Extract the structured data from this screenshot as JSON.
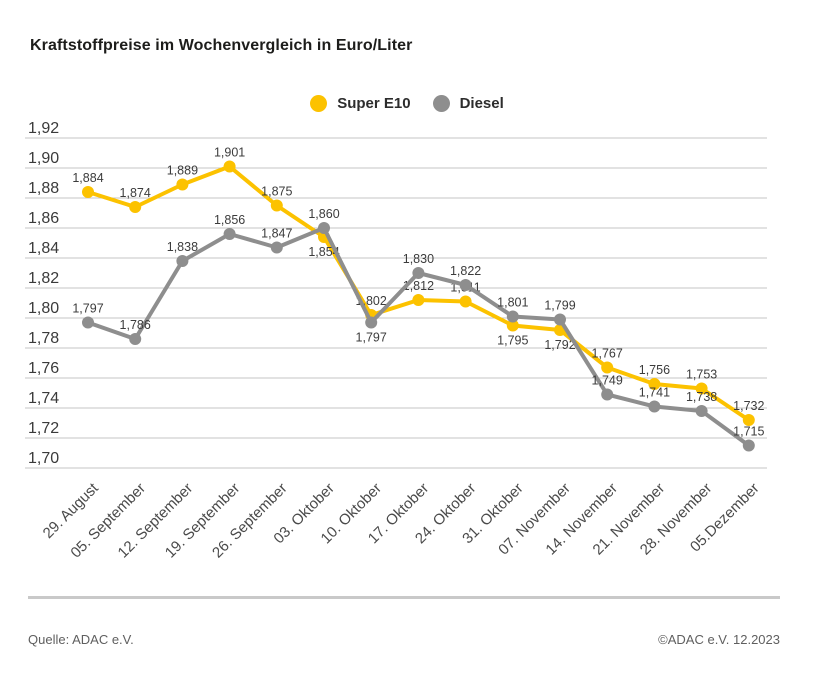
{
  "title": "Kraftstoffpreise im Wochenvergleich in Euro/Liter",
  "legend": {
    "items": [
      {
        "label": "Super E10",
        "color": "#fcc200"
      },
      {
        "label": "Diesel",
        "color": "#8e8e8e"
      }
    ]
  },
  "footer": {
    "source": "Quelle: ADAC e.V.",
    "copyright": "©ADAC e.V. 12.2023"
  },
  "colors": {
    "super_e10": "#fcc200",
    "diesel": "#8e8e8e",
    "grid": "#c6c6c6"
  },
  "chart_data": {
    "type": "line",
    "title": "Kraftstoffpreise im Wochenvergleich in Euro/Liter",
    "unit": "Euro/Liter",
    "categories": [
      "29. August",
      "05. September",
      "12. September",
      "19. September",
      "26. September",
      "03. Oktober",
      "10. Oktober",
      "17. Oktober",
      "24. Oktober",
      "31. Oktober",
      "07. November",
      "14. November",
      "21. November",
      "28. November",
      "05.Dezember"
    ],
    "series": [
      {
        "name": "Super E10",
        "color": "#fcc200",
        "values": [
          1.884,
          1.874,
          1.889,
          1.901,
          1.875,
          1.854,
          1.802,
          1.812,
          1.811,
          1.795,
          1.792,
          1.767,
          1.756,
          1.753,
          1.732
        ],
        "point_labels": [
          "1,884",
          "1,874",
          "1,889",
          "1,901",
          "1,875",
          "1,854",
          "1,802",
          "1,812",
          "1,811",
          "1,795",
          "1,792",
          "1,767",
          "1,756",
          "1,753",
          "1,732"
        ],
        "label_side": [
          "above",
          "above",
          "above",
          "above",
          "above",
          "below",
          "above",
          "above",
          "above",
          "below",
          "below",
          "above",
          "above",
          "above",
          "above"
        ]
      },
      {
        "name": "Diesel",
        "color": "#8e8e8e",
        "values": [
          1.797,
          1.786,
          1.838,
          1.856,
          1.847,
          1.86,
          1.797,
          1.83,
          1.822,
          1.801,
          1.799,
          1.749,
          1.741,
          1.738,
          1.715
        ],
        "point_labels": [
          "1,797",
          "1,786",
          "1,838",
          "1,856",
          "1,847",
          "1,860",
          "1,797",
          "1,830",
          "1,822",
          "1,801",
          "1,799",
          "1,749",
          "1,741",
          "1,738",
          "1,715"
        ],
        "label_side": [
          "above",
          "above",
          "above",
          "above",
          "above",
          "above",
          "below",
          "above",
          "above",
          "above",
          "above",
          "above",
          "above",
          "above",
          "above"
        ]
      }
    ],
    "yticks": [
      {
        "value": 1.92,
        "label": "1,92"
      },
      {
        "value": 1.9,
        "label": "1,90"
      },
      {
        "value": 1.88,
        "label": "1,88"
      },
      {
        "value": 1.86,
        "label": "1,86"
      },
      {
        "value": 1.84,
        "label": "1,84"
      },
      {
        "value": 1.82,
        "label": "1,82"
      },
      {
        "value": 1.8,
        "label": "1,80"
      },
      {
        "value": 1.78,
        "label": "1,78"
      },
      {
        "value": 1.76,
        "label": "1,76"
      },
      {
        "value": 1.74,
        "label": "1,74"
      },
      {
        "value": 1.72,
        "label": "1,72"
      },
      {
        "value": 1.7,
        "label": "1,70"
      }
    ],
    "ylim": [
      1.7,
      1.92
    ],
    "xlabel": "",
    "ylabel": "",
    "grid": true,
    "legend_position": "top"
  }
}
